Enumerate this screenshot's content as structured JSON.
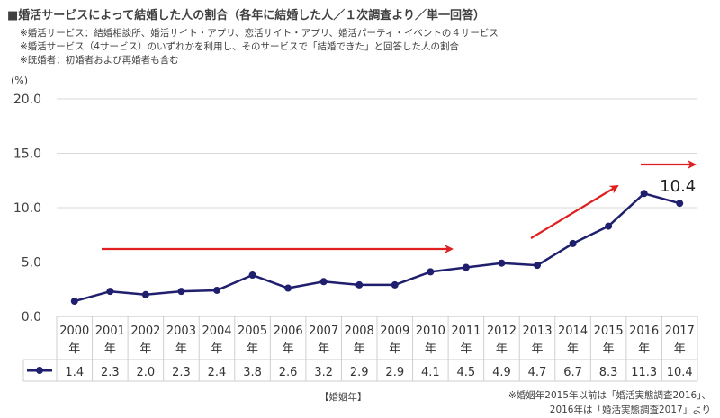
{
  "title": "■婚活サービスによって結婚した人の割合（各年に結婚した人／１次調査より／単一回答）",
  "notes": [
    "※婚活サービス：結婚相談所、婚活サイト・アプリ、恋活サイト・アプリ、婚活パーティ・イベントの４サービス",
    "※婚活サービス（4サービス）のいずれかを利用し、そのサービスで「結婚できた」と回答した人の割合",
    "※既婚者：初婚者および再婚者も含む"
  ],
  "xaxis_label": "【婚姻年】",
  "year_suffix": "年",
  "footnote": [
    "※婚姻年2015年以前は「婚活実態調査2016」、",
    "2016年は「婚活実態調査2017」より"
  ],
  "colors": {
    "series": "#1f1f6e",
    "arrow": "#e02020",
    "grid": "#d9d9d9",
    "table_border": "#cfcfcf"
  },
  "chart_data": {
    "type": "line",
    "ylabel": "(%)",
    "ylim": [
      0,
      20
    ],
    "yticks": [
      "0.0",
      "5.0",
      "10.0",
      "15.0",
      "20.0"
    ],
    "grid": true,
    "categories": [
      "2000",
      "2001",
      "2002",
      "2003",
      "2004",
      "2005",
      "2006",
      "2007",
      "2008",
      "2009",
      "2010",
      "2011",
      "2012",
      "2013",
      "2014",
      "2015",
      "2016",
      "2017"
    ],
    "series": [
      {
        "values": [
          1.4,
          2.3,
          2.0,
          2.3,
          2.4,
          3.8,
          2.6,
          3.2,
          2.9,
          2.9,
          4.1,
          4.5,
          4.9,
          4.7,
          6.7,
          8.3,
          11.3,
          10.4
        ]
      }
    ],
    "table_values": [
      "1.4",
      "2.3",
      "2.0",
      "2.3",
      "2.4",
      "3.8",
      "2.6",
      "3.2",
      "2.9",
      "2.9",
      "4.1",
      "4.5",
      "4.9",
      "4.7",
      "6.7",
      "8.3",
      "11.3",
      "10.4"
    ],
    "annotations": [
      {
        "text": "10.4"
      }
    ]
  }
}
